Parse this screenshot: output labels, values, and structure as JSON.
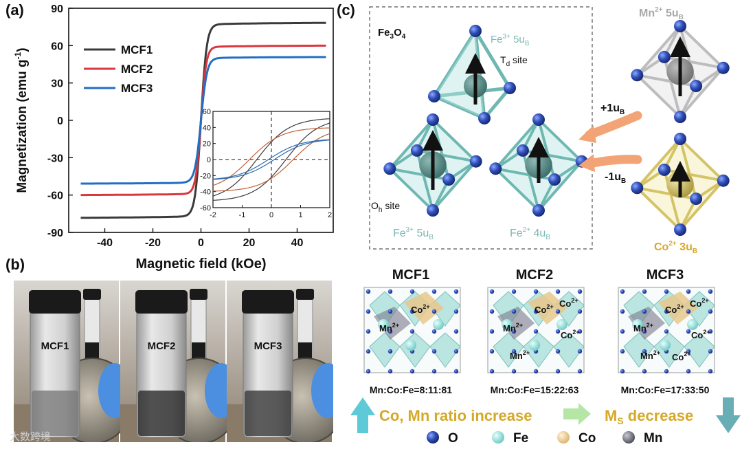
{
  "panel_labels": {
    "a": "(a)",
    "b": "(b)",
    "c": "(c)"
  },
  "chart_data": [
    {
      "type": "line",
      "title": "",
      "xlabel": "Magnetic field (kOe)",
      "ylabel": "Magnetization (emu g-1)",
      "ylabel_main": "Magnetization (emu g",
      "ylabel_sup": "-1",
      "ylabel_end": ")",
      "xlim": [
        -55,
        55
      ],
      "ylim": [
        -90,
        90
      ],
      "xticks": [
        -40,
        -20,
        0,
        20,
        40
      ],
      "yticks": [
        90,
        60,
        30,
        0,
        -30,
        -60,
        -90
      ],
      "legend": "top-left",
      "series": [
        {
          "name": "MCF1",
          "color": "#3a3a3a",
          "ms": 77,
          "k": 0.42
        },
        {
          "name": "MCF2",
          "color": "#d9363e",
          "ms": 59,
          "k": 0.46
        },
        {
          "name": "MCF3",
          "color": "#1f6fc4",
          "ms": 50,
          "k": 0.4
        }
      ]
    },
    {
      "type": "line",
      "title": "inset",
      "xlim": [
        -2,
        2
      ],
      "ylim": [
        -60,
        60
      ],
      "xticks": [
        -2,
        -1,
        0,
        1,
        2
      ],
      "yticks": [
        60,
        40,
        20,
        0,
        -20,
        -40,
        -60
      ],
      "series": [
        {
          "name": "MCF1",
          "color": "#3a3a3a",
          "hc": 0.5,
          "ms": 52
        },
        {
          "name": "MCF2",
          "color": "#c0603a",
          "hc": 0.75,
          "ms": 40
        },
        {
          "name": "MCF3",
          "color": "#2f6aa8",
          "hc": 0.1,
          "ms": 26
        }
      ]
    }
  ],
  "photos": {
    "vials": [
      "MCF1",
      "MCF2",
      "MCF3"
    ]
  },
  "diagram": {
    "box_title_main": "Fe",
    "box_title_sub1": "3",
    "box_title_mid": "O",
    "box_title_sub2": "4",
    "td_label_pre": "Fe",
    "td_label_sup": "3+",
    "td_label_post": " 5u",
    "td_label_sub": "B",
    "td_site_pre": "T",
    "td_site_sub": "d",
    "td_site_post": " site",
    "oh_site_pre": "O",
    "oh_site_sub": "h",
    "oh_site_post": " site",
    "fe3_pre": "Fe",
    "fe3_sup": "3+",
    "fe3_post": " 5u",
    "fe3_sub": "B",
    "fe2_pre": "Fe",
    "fe2_sup": "2+",
    "fe2_post": " 4u",
    "fe2_sub": "B",
    "mn_pre": "Mn",
    "mn_sup": "2+",
    "mn_post": " 5u",
    "mn_sub": "B",
    "co_pre": "Co",
    "co_sup": "2+",
    "co_post": " 3u",
    "co_sub": "B",
    "plus_pre": "+1u",
    "plus_sub": "B",
    "minus_pre": "-1u",
    "minus_sub": "B",
    "crystals": [
      {
        "name": "MCF1",
        "ratio": "Mn:Co:Fe=8:11:81"
      },
      {
        "name": "MCF2",
        "ratio": "Mn:Co:Fe=15:22:63"
      },
      {
        "name": "MCF3",
        "ratio": "Mn:Co:Fe=17:33:50"
      }
    ],
    "ion_mn": "Mn",
    "ion_co": "Co",
    "ion_sup": "2+",
    "trend_left": "Co, Mn ratio increase",
    "trend_right_pre": "M",
    "trend_right_sub": "S",
    "trend_right_post": " decrease",
    "legend": [
      {
        "label": "O",
        "color": "#2f4fb8"
      },
      {
        "label": "Fe",
        "color": "#8fd9d4"
      },
      {
        "label": "Co",
        "color": "#e8c88c"
      },
      {
        "label": "Mn",
        "color": "#6b6b7a"
      }
    ]
  },
  "watermark": "大数跨境"
}
